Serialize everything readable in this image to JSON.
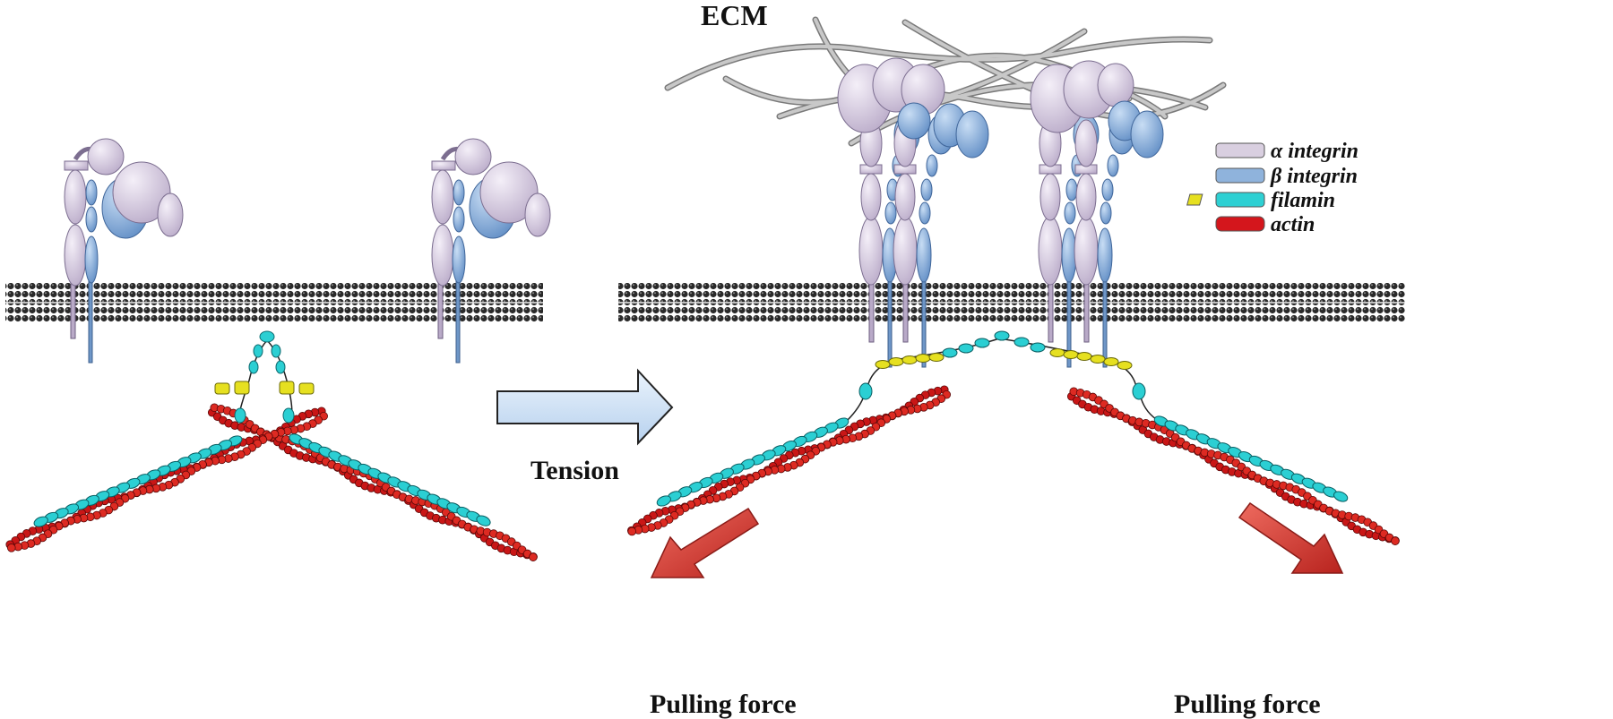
{
  "labels": {
    "ecm": "ECM",
    "tension": "Tension",
    "pulling_force_left": "Pulling force",
    "pulling_force_right": "Pulling force"
  },
  "legend": [
    {
      "text": "α integrin",
      "icon": "alpha-integrin-swatch",
      "color": "#d9cfe0"
    },
    {
      "text": "β integrin",
      "icon": "beta-integrin-swatch",
      "color": "#8fb3dc"
    },
    {
      "text": "filamin",
      "icon": "filamin-swatch",
      "color": "#2ed0d3"
    },
    {
      "text": "actin",
      "icon": "actin-swatch",
      "color": "#d4161c"
    }
  ],
  "colors": {
    "alpha_integrin": "#d6cbe0",
    "beta_integrin": "#88addb",
    "filamin_rod": "#2bcfd3",
    "filamin_hinge": "#e6e020",
    "actin": "#cf1a1a",
    "membrane": "#3a3a3a",
    "ecm_fiber": "#a8a8a8",
    "tension_arrow": "#cde0f5",
    "pulling_arrow": "#d9413a"
  }
}
